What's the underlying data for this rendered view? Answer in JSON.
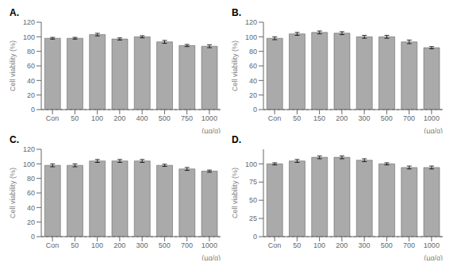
{
  "chart_data": [
    {
      "type": "bar",
      "title": "A.",
      "categories": [
        "Con",
        "50",
        "100",
        "200",
        "400",
        "500",
        "750",
        "1000"
      ],
      "values": [
        98,
        98,
        103,
        97,
        100,
        93,
        88,
        87
      ],
      "errors": [
        1.2,
        1.2,
        1.8,
        1.5,
        1.5,
        2.0,
        1.5,
        2.0
      ],
      "color": "#aaaaaa",
      "ylim": [
        0,
        120
      ],
      "yticks": [
        0,
        20,
        40,
        60,
        80,
        100,
        120
      ],
      "y_label": "Cell viability (%)",
      "annotations": [
        "(µg/g)"
      ],
      "grid": false
    },
    {
      "type": "bar",
      "title": "B.",
      "categories": [
        "Con",
        "50",
        "150",
        "200",
        "300",
        "500",
        "700",
        "1000"
      ],
      "values": [
        98,
        104,
        106,
        105,
        100,
        100,
        93,
        85
      ],
      "errors": [
        2.0,
        2.0,
        2.0,
        2.0,
        2.0,
        2.0,
        2.5,
        1.5
      ],
      "color": "#aaaaaa",
      "ylim": [
        0,
        120
      ],
      "yticks": [
        0,
        20,
        40,
        60,
        80,
        100,
        120
      ],
      "y_label": "Cell viability (%)",
      "annotations": [
        "(µg/g)"
      ],
      "grid": false
    },
    {
      "type": "bar",
      "title": "C.",
      "categories": [
        "Con",
        "50",
        "100",
        "200",
        "300",
        "500",
        "700",
        "1000"
      ],
      "values": [
        98,
        98,
        104,
        104,
        104,
        98,
        93,
        90
      ],
      "errors": [
        2.0,
        2.0,
        2.0,
        2.0,
        2.0,
        1.5,
        2.0,
        1.5
      ],
      "color": "#aaaaaa",
      "ylim": [
        0,
        120
      ],
      "yticks": [
        0,
        20,
        40,
        60,
        80,
        100,
        120
      ],
      "y_label": "Cell viability (%)",
      "annotations": [
        "(µg/g)"
      ],
      "grid": false
    },
    {
      "type": "bar",
      "title": "D.",
      "categories": [
        "Con",
        "50",
        "100",
        "200",
        "300",
        "500",
        "700",
        "1000"
      ],
      "values": [
        100,
        104,
        109,
        109,
        105,
        100,
        95,
        95
      ],
      "errors": [
        1.5,
        2.0,
        2.0,
        2.0,
        2.0,
        1.5,
        2.0,
        2.0
      ],
      "color": "#aaaaaa",
      "ylim": [
        0,
        120
      ],
      "yticks": [
        0,
        25,
        50,
        75,
        100
      ],
      "y_label": "Cell viability (%)",
      "annotations": [
        "(µg/g)"
      ],
      "grid": false
    }
  ]
}
